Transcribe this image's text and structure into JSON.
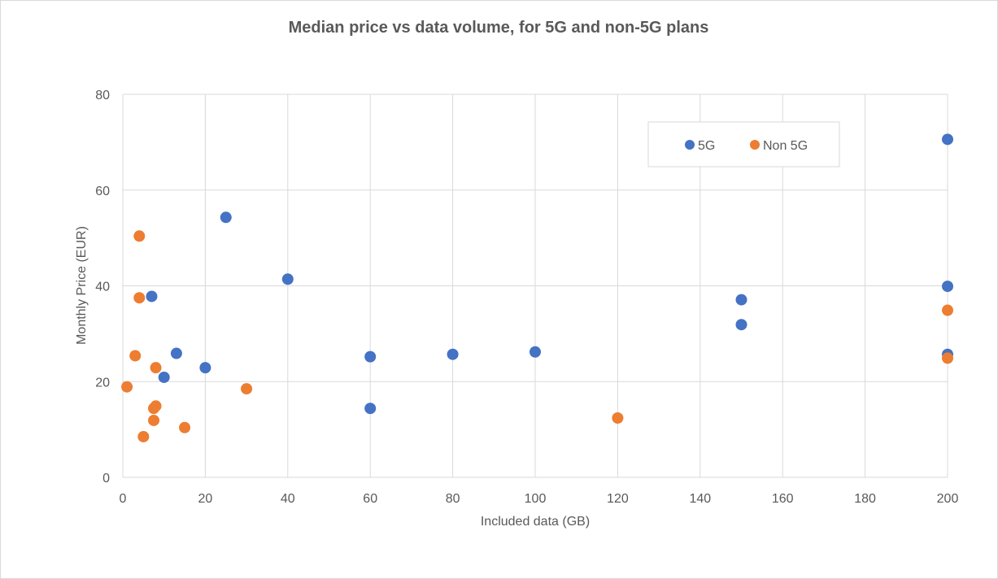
{
  "chart_data": {
    "type": "scatter",
    "title": "Median price vs data volume, for 5G and non-5G plans",
    "xlabel": "Included data (GB)",
    "ylabel": "Monthly Price (EUR)",
    "xlim": [
      0,
      200
    ],
    "ylim": [
      0,
      80
    ],
    "x_ticks": [
      0,
      20,
      40,
      60,
      80,
      100,
      120,
      140,
      160,
      180,
      200
    ],
    "y_ticks": [
      0,
      20,
      40,
      60,
      80
    ],
    "grid": true,
    "legend_position": "top-right",
    "series": [
      {
        "name": "5G",
        "color": "#4472c4",
        "points": [
          {
            "x": 7,
            "y": 37.8
          },
          {
            "x": 10,
            "y": 20.9
          },
          {
            "x": 13,
            "y": 25.9
          },
          {
            "x": 20,
            "y": 22.9
          },
          {
            "x": 25,
            "y": 54.3
          },
          {
            "x": 40,
            "y": 41.4
          },
          {
            "x": 60,
            "y": 25.2
          },
          {
            "x": 60,
            "y": 14.4
          },
          {
            "x": 80,
            "y": 25.7
          },
          {
            "x": 100,
            "y": 26.2
          },
          {
            "x": 150,
            "y": 37.1
          },
          {
            "x": 150,
            "y": 31.9
          },
          {
            "x": 200,
            "y": 70.6
          },
          {
            "x": 200,
            "y": 39.9
          },
          {
            "x": 200,
            "y": 25.7
          }
        ]
      },
      {
        "name": "Non 5G",
        "color": "#ed7d31",
        "points": [
          {
            "x": 1,
            "y": 18.9
          },
          {
            "x": 3,
            "y": 25.4
          },
          {
            "x": 4,
            "y": 50.4
          },
          {
            "x": 4,
            "y": 37.5
          },
          {
            "x": 5,
            "y": 8.5
          },
          {
            "x": 7.5,
            "y": 14.4
          },
          {
            "x": 7.5,
            "y": 11.9
          },
          {
            "x": 8,
            "y": 22.9
          },
          {
            "x": 8,
            "y": 14.9
          },
          {
            "x": 15,
            "y": 10.4
          },
          {
            "x": 30,
            "y": 18.5
          },
          {
            "x": 120,
            "y": 12.4
          },
          {
            "x": 200,
            "y": 34.9
          },
          {
            "x": 200,
            "y": 24.9
          }
        ]
      }
    ]
  }
}
